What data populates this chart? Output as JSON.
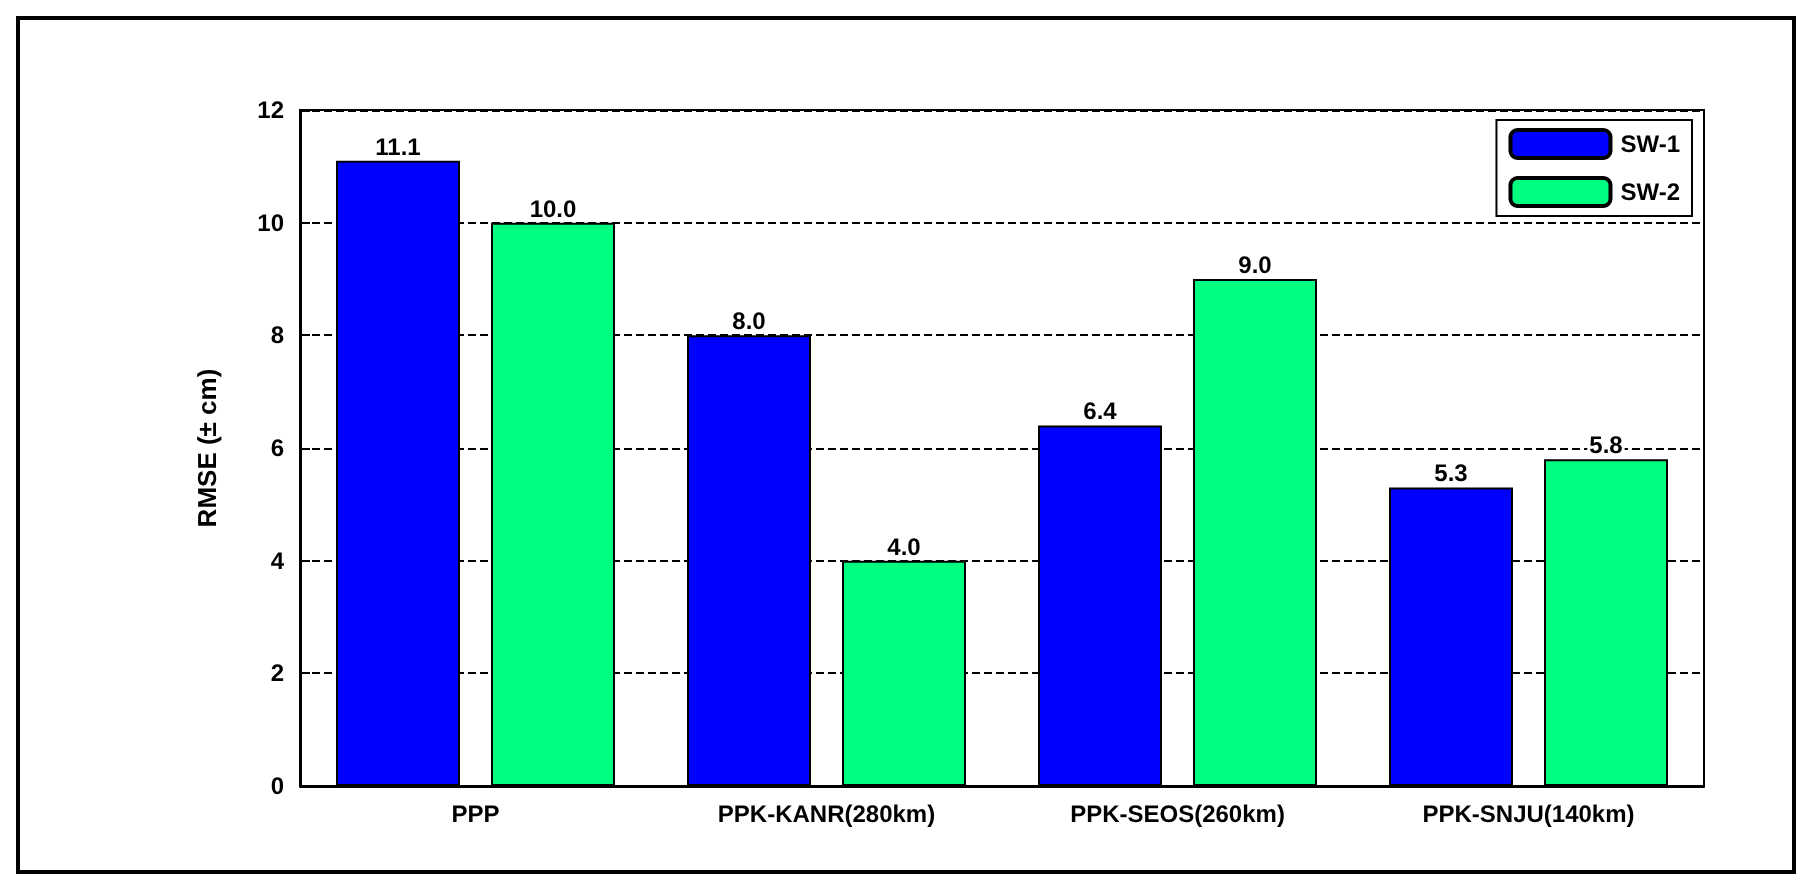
{
  "chart_data": {
    "type": "bar",
    "ylabel": "RMSE (± cm)",
    "categories": [
      "PPP",
      "PPK-KANR(280km)",
      "PPK-SEOS(260km)",
      "PPK-SNJU(140km)"
    ],
    "series": [
      {
        "name": "SW-1",
        "color": "#0000ff",
        "values": [
          11.1,
          8.0,
          6.4,
          5.3
        ],
        "value_labels": [
          "11.1",
          "8.0",
          "6.4",
          "5.3"
        ]
      },
      {
        "name": "SW-2",
        "color": "#00ff80",
        "values": [
          10.0,
          4.0,
          9.0,
          5.8
        ],
        "value_labels": [
          "10.0",
          "4.0",
          "9.0",
          "5.8"
        ]
      }
    ],
    "ylim": [
      0,
      12
    ],
    "yticks": [
      0,
      2,
      4,
      6,
      8,
      10,
      12
    ],
    "grid": "y",
    "legend": "top right"
  }
}
